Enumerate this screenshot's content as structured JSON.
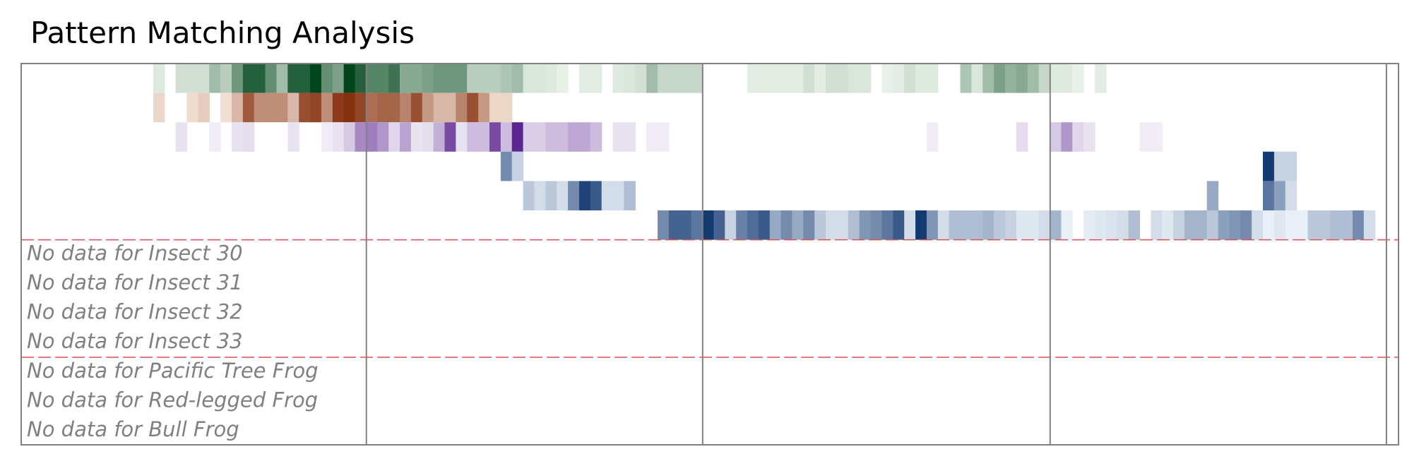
{
  "title": "Pattern Matching Analysis",
  "chart_data": {
    "type": "heatmap",
    "title": "Pattern Matching Analysis",
    "x_range": [
      0,
      120
    ],
    "grid": false,
    "legend": "none",
    "boundaries": [
      0,
      30,
      60,
      91,
      121
    ],
    "group_separators_after_row": [
      5,
      9
    ],
    "rows": [
      {
        "palette": "greens",
        "cells": [
          [
            11,
            0.1
          ],
          [
            13,
            0.15
          ],
          [
            14,
            0.15
          ],
          [
            15,
            0.15
          ],
          [
            16,
            0.35
          ],
          [
            17,
            0.25
          ],
          [
            18,
            0.55
          ],
          [
            19,
            0.85
          ],
          [
            20,
            0.85
          ],
          [
            21,
            0.6
          ],
          [
            22,
            0.35
          ],
          [
            23,
            0.85
          ],
          [
            24,
            0.85
          ],
          [
            25,
            1.0
          ],
          [
            26,
            0.6
          ],
          [
            27,
            0.5
          ],
          [
            28,
            1.0
          ],
          [
            29,
            0.85
          ],
          [
            30,
            0.65
          ],
          [
            31,
            0.65
          ],
          [
            32,
            0.75
          ],
          [
            33,
            0.45
          ],
          [
            34,
            0.45
          ],
          [
            35,
            0.5
          ],
          [
            36,
            0.55
          ],
          [
            37,
            0.55
          ],
          [
            38,
            0.55
          ],
          [
            39,
            0.25
          ],
          [
            40,
            0.25
          ],
          [
            41,
            0.25
          ],
          [
            42,
            0.3
          ],
          [
            43,
            0.35
          ],
          [
            44,
            0.12
          ],
          [
            45,
            0.12
          ],
          [
            46,
            0.1
          ],
          [
            47,
            0.06
          ],
          [
            49,
            0.08
          ],
          [
            50,
            0.08
          ],
          [
            52,
            0.1
          ],
          [
            53,
            0.12
          ],
          [
            54,
            0.15
          ],
          [
            55,
            0.35
          ],
          [
            56,
            0.2
          ],
          [
            57,
            0.2
          ],
          [
            58,
            0.2
          ],
          [
            59,
            0.2
          ],
          [
            64,
            0.08
          ],
          [
            65,
            0.08
          ],
          [
            66,
            0.08
          ],
          [
            67,
            0.08
          ],
          [
            68,
            0.08
          ],
          [
            69,
            0.15
          ],
          [
            70,
            0.08
          ],
          [
            71,
            0.15
          ],
          [
            72,
            0.15
          ],
          [
            73,
            0.12
          ],
          [
            74,
            0.12
          ],
          [
            76,
            0.06
          ],
          [
            77,
            0.08
          ],
          [
            78,
            0.15
          ],
          [
            79,
            0.1
          ],
          [
            80,
            0.1
          ],
          [
            83,
            0.3
          ],
          [
            84,
            0.12
          ],
          [
            85,
            0.35
          ],
          [
            86,
            0.5
          ],
          [
            87,
            0.4
          ],
          [
            88,
            0.45
          ],
          [
            89,
            0.35
          ],
          [
            90,
            0.2
          ],
          [
            91,
            0.1
          ],
          [
            92,
            0.1
          ],
          [
            93,
            0.06
          ],
          [
            95,
            0.08
          ]
        ]
      },
      {
        "palette": "oranges",
        "cells": [
          [
            11,
            0.15
          ],
          [
            14,
            0.12
          ],
          [
            15,
            0.2
          ],
          [
            17,
            0.1
          ],
          [
            18,
            0.3
          ],
          [
            19,
            0.75
          ],
          [
            20,
            0.5
          ],
          [
            21,
            0.5
          ],
          [
            22,
            0.5
          ],
          [
            23,
            0.3
          ],
          [
            24,
            0.8
          ],
          [
            25,
            0.85
          ],
          [
            26,
            0.5
          ],
          [
            27,
            0.9
          ],
          [
            28,
            0.95
          ],
          [
            29,
            0.85
          ],
          [
            30,
            0.65
          ],
          [
            31,
            0.7
          ],
          [
            32,
            0.7
          ],
          [
            33,
            0.55
          ],
          [
            34,
            0.8
          ],
          [
            35,
            0.45
          ],
          [
            36,
            0.3
          ],
          [
            37,
            0.3
          ],
          [
            38,
            0.55
          ],
          [
            39,
            0.8
          ],
          [
            40,
            0.45
          ],
          [
            41,
            0.15
          ],
          [
            42,
            0.15
          ]
        ]
      },
      {
        "palette": "purples",
        "cells": [
          [
            13,
            0.1
          ],
          [
            16,
            0.06
          ],
          [
            18,
            0.1
          ],
          [
            19,
            0.12
          ],
          [
            23,
            0.1
          ],
          [
            26,
            0.06
          ],
          [
            27,
            0.1
          ],
          [
            28,
            0.2
          ],
          [
            29,
            0.45
          ],
          [
            30,
            0.5
          ],
          [
            31,
            0.4
          ],
          [
            32,
            0.15
          ],
          [
            33,
            0.35
          ],
          [
            34,
            0.1
          ],
          [
            35,
            0.12
          ],
          [
            36,
            0.3
          ],
          [
            37,
            0.7
          ],
          [
            38,
            0.1
          ],
          [
            39,
            0.25
          ],
          [
            40,
            0.25
          ],
          [
            41,
            0.7
          ],
          [
            42,
            0.25
          ],
          [
            43,
            0.85
          ],
          [
            44,
            0.18
          ],
          [
            45,
            0.18
          ],
          [
            46,
            0.25
          ],
          [
            47,
            0.25
          ],
          [
            48,
            0.33
          ],
          [
            49,
            0.33
          ],
          [
            50,
            0.25
          ],
          [
            52,
            0.1
          ],
          [
            53,
            0.1
          ],
          [
            55,
            0.06
          ],
          [
            56,
            0.06
          ],
          [
            80,
            0.06
          ],
          [
            88,
            0.12
          ],
          [
            91,
            0.2
          ],
          [
            92,
            0.4
          ],
          [
            93,
            0.15
          ],
          [
            94,
            0.1
          ],
          [
            99,
            0.06
          ],
          [
            100,
            0.06
          ]
        ]
      },
      {
        "palette": "blues",
        "cells": [
          [
            42,
            0.55
          ],
          [
            43,
            0.2
          ],
          [
            110,
            0.95
          ],
          [
            111,
            0.2
          ],
          [
            112,
            0.2
          ]
        ]
      },
      {
        "palette": "blues",
        "cells": [
          [
            44,
            0.25
          ],
          [
            45,
            0.15
          ],
          [
            46,
            0.25
          ],
          [
            47,
            0.15
          ],
          [
            48,
            0.55
          ],
          [
            49,
            0.9
          ],
          [
            50,
            0.8
          ],
          [
            51,
            0.15
          ],
          [
            52,
            0.15
          ],
          [
            53,
            0.3
          ],
          [
            105,
            0.4
          ],
          [
            110,
            0.65
          ],
          [
            111,
            0.45
          ],
          [
            112,
            0.15
          ]
        ]
      },
      {
        "palette": "blues",
        "cells": [
          [
            56,
            0.55
          ],
          [
            57,
            0.75
          ],
          [
            58,
            0.75
          ],
          [
            59,
            0.65
          ],
          [
            60,
            0.95
          ],
          [
            61,
            0.75
          ],
          [
            62,
            0.2
          ],
          [
            63,
            0.6
          ],
          [
            64,
            0.7
          ],
          [
            65,
            0.8
          ],
          [
            66,
            0.4
          ],
          [
            67,
            0.55
          ],
          [
            68,
            0.4
          ],
          [
            69,
            0.55
          ],
          [
            70,
            0.25
          ],
          [
            71,
            0.15
          ],
          [
            72,
            0.15
          ],
          [
            73,
            0.3
          ],
          [
            74,
            0.5
          ],
          [
            75,
            0.55
          ],
          [
            76,
            0.65
          ],
          [
            77,
            0.8
          ],
          [
            78,
            0.15
          ],
          [
            79,
            0.95
          ],
          [
            80,
            0.5
          ],
          [
            81,
            0.15
          ],
          [
            82,
            0.3
          ],
          [
            83,
            0.3
          ],
          [
            84,
            0.3
          ],
          [
            85,
            0.35
          ],
          [
            86,
            0.25
          ],
          [
            87,
            0.2
          ],
          [
            88,
            0.1
          ],
          [
            89,
            0.1
          ],
          [
            90,
            0.15
          ],
          [
            91,
            0.35
          ],
          [
            92,
            0.06
          ],
          [
            94,
            0.08
          ],
          [
            95,
            0.1
          ],
          [
            96,
            0.12
          ],
          [
            97,
            0.15
          ],
          [
            98,
            0.3
          ],
          [
            100,
            0.15
          ],
          [
            101,
            0.1
          ],
          [
            102,
            0.2
          ],
          [
            103,
            0.35
          ],
          [
            104,
            0.35
          ],
          [
            105,
            0.25
          ],
          [
            106,
            0.45
          ],
          [
            107,
            0.5
          ],
          [
            108,
            0.55
          ],
          [
            109,
            0.15
          ],
          [
            110,
            0.06
          ],
          [
            111,
            0.1
          ],
          [
            112,
            0.06
          ],
          [
            113,
            0.06
          ],
          [
            114,
            0.25
          ],
          [
            115,
            0.25
          ],
          [
            116,
            0.3
          ],
          [
            117,
            0.3
          ],
          [
            118,
            0.55
          ],
          [
            119,
            0.15
          ]
        ]
      }
    ],
    "no_data_rows": [
      "No data for Insect 30",
      "No data for Insect 31",
      "No data for Insect 32",
      "No data for Insect 33",
      "No data for Pacific Tree Frog",
      "No data for Red-legged Frog",
      "No data for Bull Frog"
    ],
    "colors": {
      "greens": [
        "#f7fcf5",
        "#00441b"
      ],
      "oranges": [
        "#fff5eb",
        "#7f2704"
      ],
      "purples": [
        "#fcfbfd",
        "#3f007d"
      ],
      "blues": [
        "#f7fbff",
        "#08306b"
      ],
      "frame": "#808080",
      "separator": "#e05050",
      "no_data_text": "#808080"
    }
  }
}
